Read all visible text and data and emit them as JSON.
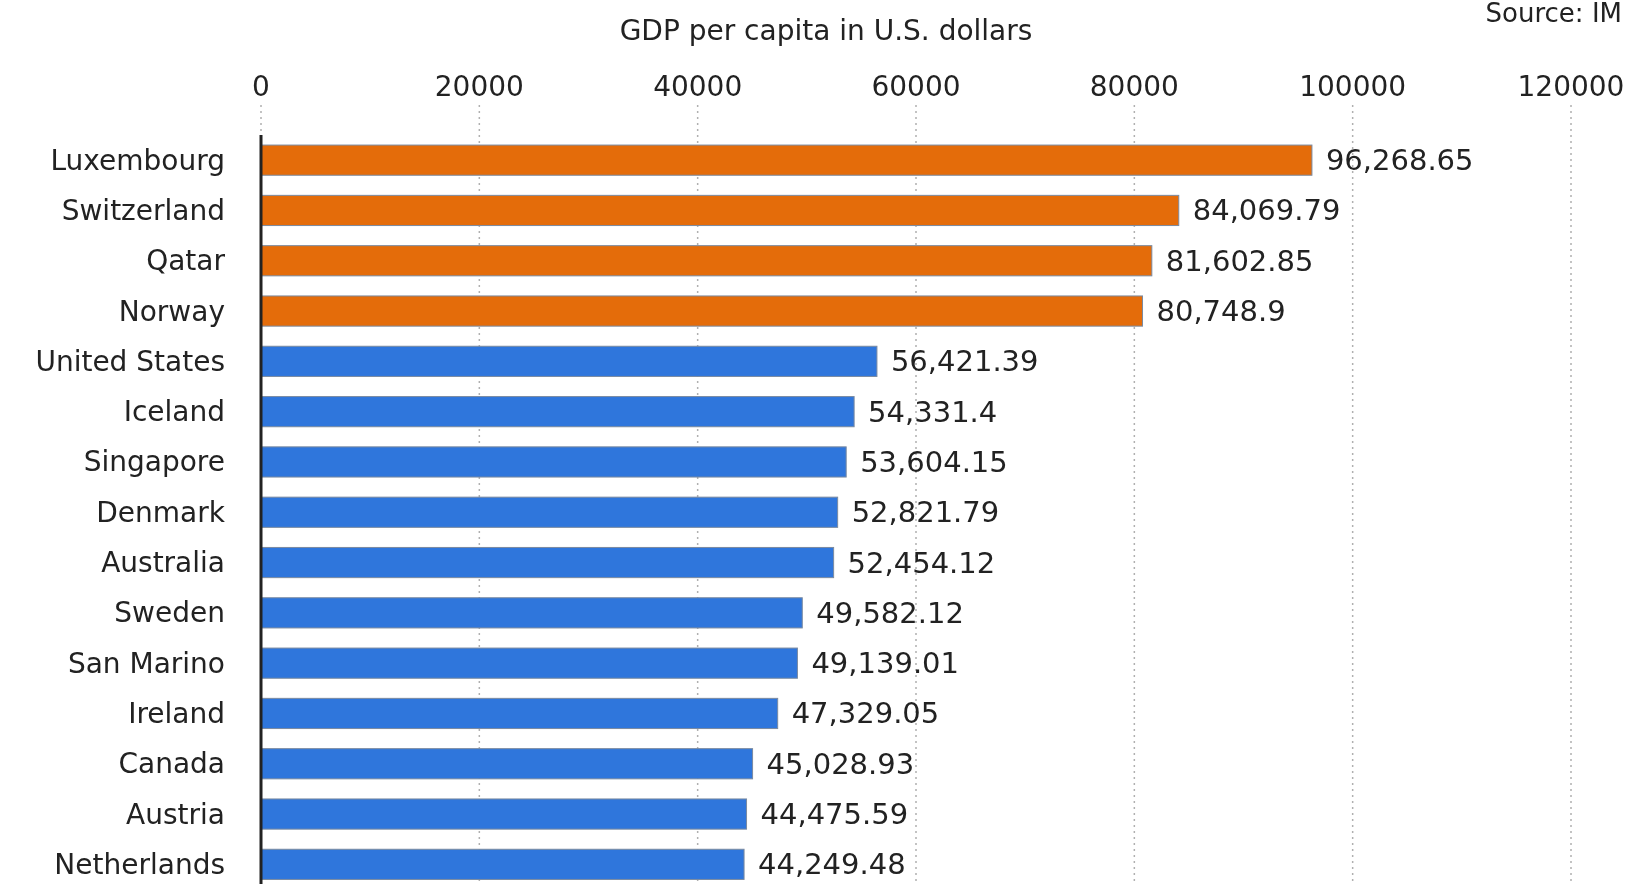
{
  "chart_data": {
    "type": "bar",
    "orientation": "horizontal",
    "xlabel": "GDP per capita in U.S. dollars",
    "annotations": [
      "Source: IM"
    ],
    "categories": [
      "Luxembourg",
      "Switzerland",
      "Qatar",
      "Norway",
      "United States",
      "Iceland",
      "Singapore",
      "Denmark",
      "Australia",
      "Sweden",
      "San Marino",
      "Ireland",
      "Canada",
      "Austria",
      "Netherlands"
    ],
    "values": [
      96268.65,
      84069.79,
      81602.85,
      80748.9,
      56421.39,
      54331.4,
      53604.15,
      52821.79,
      52454.12,
      49582.12,
      49139.01,
      47329.05,
      45028.93,
      44475.59,
      44249.48
    ],
    "colors": [
      "#e46c0a",
      "#e46c0a",
      "#e46c0a",
      "#e46c0a",
      "#2f76dc",
      "#2f76dc",
      "#2f76dc",
      "#2f76dc",
      "#2f76dc",
      "#2f76dc",
      "#2f76dc",
      "#2f76dc",
      "#2f76dc",
      "#2f76dc",
      "#2f76dc"
    ],
    "value_labels": [
      "96,268.65",
      "84,069.79",
      "81,602.85",
      "80,748.9",
      "56,421.39",
      "54,331.4",
      "53,604.15",
      "52,821.79",
      "52,454.12",
      "49,582.12",
      "49,139.01",
      "47,329.05",
      "45,028.93",
      "44,475.59",
      "44,249.48"
    ],
    "xlim": [
      0,
      120000
    ],
    "xticks": [
      0,
      20000,
      40000,
      60000,
      80000,
      100000,
      120000
    ],
    "grid": "x"
  }
}
